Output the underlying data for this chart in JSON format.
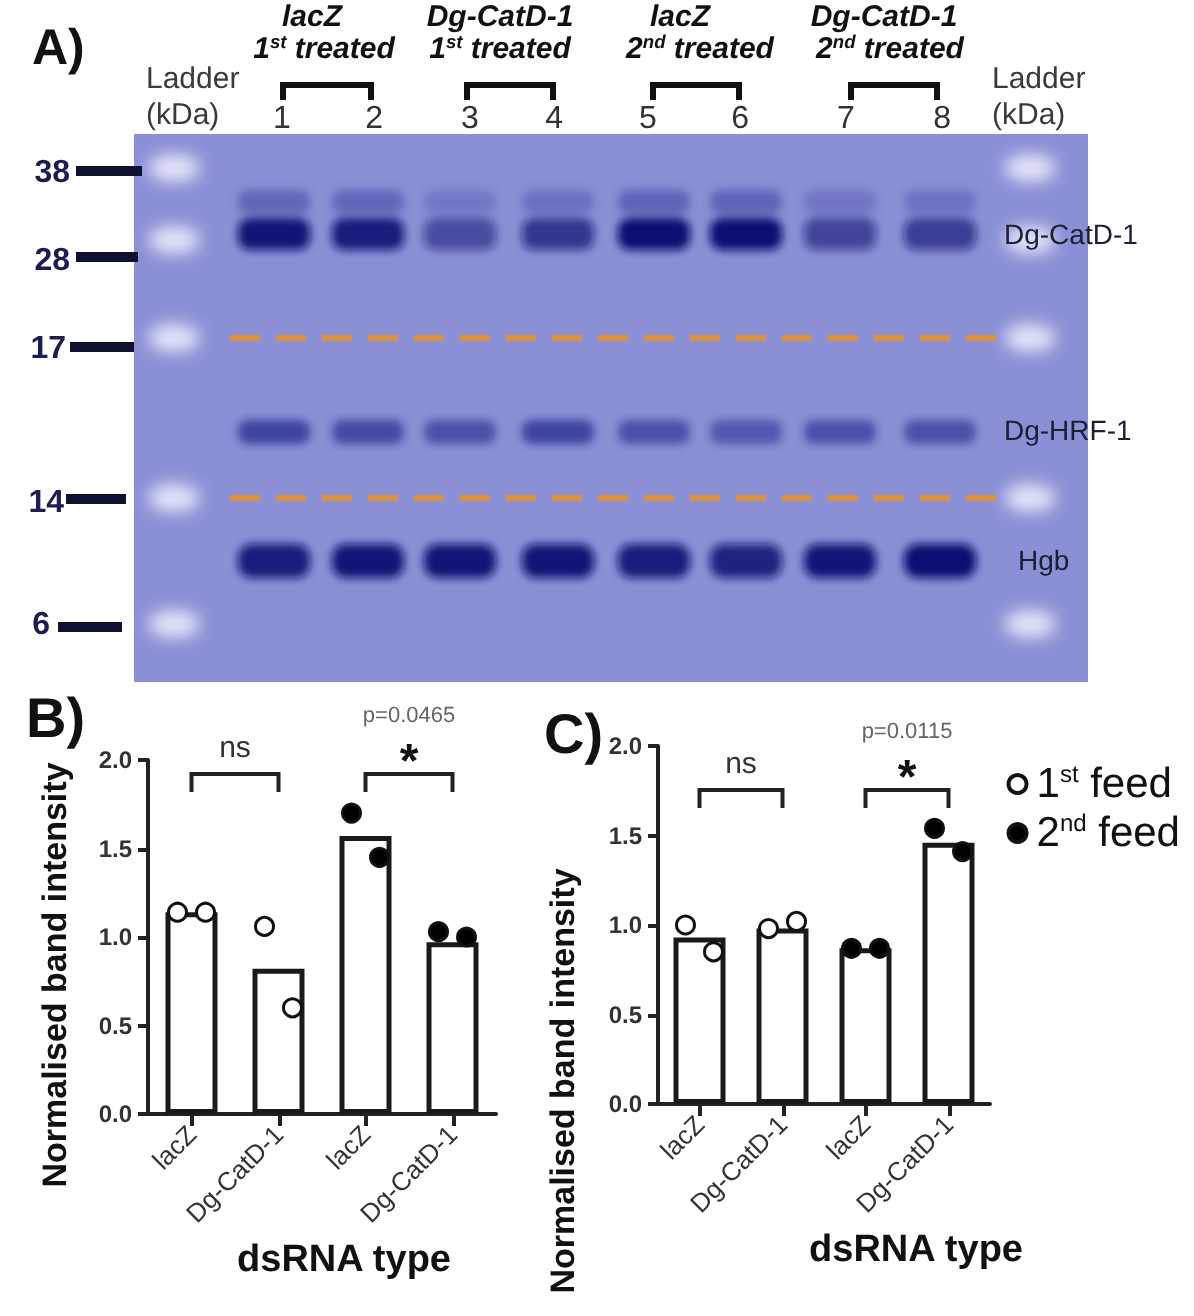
{
  "chart_data": [
    {
      "type": "other",
      "title": "A)",
      "annotations": [
        "Ladder (kDa)",
        "lacZ",
        "1$^{st}$ treated",
        "Dg-CatD-1",
        "1$^{st}$ treated",
        "lacZ",
        "2$^{nd}$ treated",
        "Dg-CatD-1",
        "2$^{nd}$ treated",
        "Ladder (kDa)",
        "1 2",
        "3 4",
        "5 6",
        "7 8",
        "38",
        "28",
        "17",
        "14",
        "6",
        "Dg-CatD-1",
        "Dg-HRF-1",
        "Hgb"
      ]
    },
    {
      "type": "bar",
      "title": "B)",
      "xlabel": "dsRNA type",
      "ylabel": "Normalised band intensity",
      "categories": [
        "lacZ",
        "Dg-CatD-1",
        "lacZ",
        "Dg-CatD-1"
      ],
      "series": [
        {
          "type": "bar",
          "color": "#ffffff",
          "values": [
            1.14,
            0.82,
            1.57,
            0.97
          ]
        },
        {
          "type": "scatter",
          "color": "#ffffff",
          "values": [
            1.14,
            1.06,
            null,
            null
          ]
        },
        {
          "type": "scatter",
          "color": "#ffffff",
          "values": [
            1.14,
            0.6,
            null,
            null
          ]
        },
        {
          "type": "scatter",
          "color": "#000000",
          "values": [
            null,
            null,
            1.7,
            1.03
          ]
        },
        {
          "type": "scatter",
          "color": "#000000",
          "values": [
            null,
            null,
            1.45,
            1.0
          ]
        }
      ],
      "ylim": [
        0,
        2
      ],
      "yticks": [
        {
          "value": 0,
          "label": "0.0"
        },
        {
          "value": 0.5,
          "label": "0.5"
        },
        {
          "value": 1,
          "label": "1.0"
        },
        {
          "value": 1.5,
          "label": "1.5"
        },
        {
          "value": 2,
          "label": "2.0"
        }
      ],
      "marker": "circle",
      "annotations": [
        "ns",
        "p=0.0465",
        "*"
      ]
    },
    {
      "type": "bar",
      "title": "C)",
      "xlabel": "dsRNA type",
      "ylabel": "Normalised band intensity",
      "categories": [
        "lacZ",
        "Dg-CatD-1",
        "lacZ",
        "Dg-CatD-1"
      ],
      "series": [
        {
          "type": "bar",
          "color": "#ffffff",
          "values": [
            0.93,
            0.98,
            0.87,
            1.46
          ]
        },
        {
          "type": "scatter",
          "name": "1$^{st}$ feed",
          "color": "#ffffff",
          "values": [
            1.0,
            0.98,
            null,
            null
          ]
        },
        {
          "type": "scatter",
          "color": "#ffffff",
          "values": [
            0.85,
            1.02,
            null,
            null
          ]
        },
        {
          "type": "scatter",
          "name": "2$^{nd}$ feed",
          "color": "#000000",
          "values": [
            null,
            null,
            0.87,
            1.54
          ]
        },
        {
          "type": "scatter",
          "color": "#000000",
          "values": [
            null,
            null,
            0.87,
            1.41
          ]
        }
      ],
      "ylim": [
        0,
        2
      ],
      "yticks": [
        {
          "value": 0,
          "label": "0.0"
        },
        {
          "value": 0.5,
          "label": "0.5"
        },
        {
          "value": 1,
          "label": "1.0"
        },
        {
          "value": 1.5,
          "label": "1.5"
        },
        {
          "value": 2,
          "label": "2.0"
        }
      ],
      "marker": "circle",
      "legend": "top right",
      "annotations": [
        "ns",
        "p=0.0115",
        "*"
      ]
    }
  ]
}
